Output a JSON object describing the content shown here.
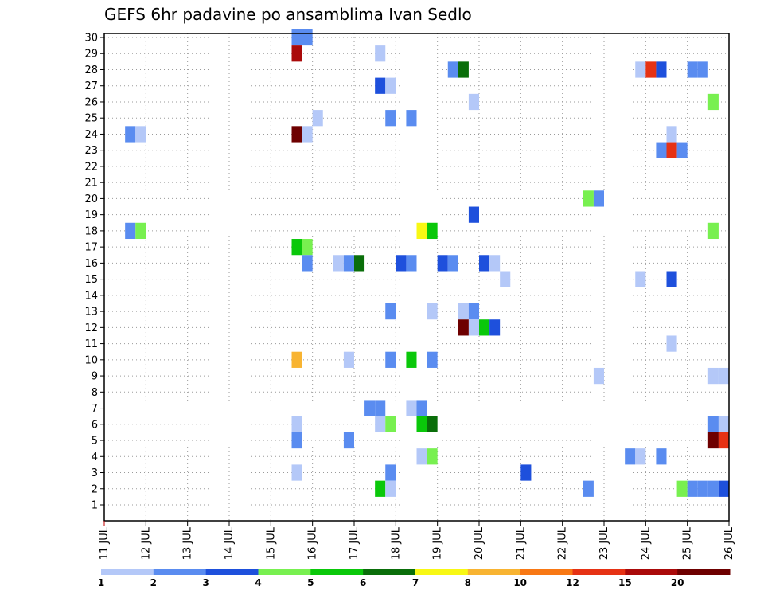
{
  "chart_data": {
    "type": "heatmap",
    "title": "GEFS 6hr padavine po ansamblima Ivan Sedlo",
    "xlabel": "",
    "ylabel": "",
    "x_tick_labels": [
      "11 JUL",
      "12 JUL",
      "13 JUL",
      "14 JUL",
      "15 JUL",
      "16 JUL",
      "17 JUL",
      "18 JUL",
      "19 JUL",
      "20 JUL",
      "21 JUL",
      "22 JUL",
      "23 JUL",
      "24 JUL",
      "25 JUL",
      "26 JUL"
    ],
    "x_range_days": [
      11,
      26
    ],
    "x_step_hours": 6,
    "y_tick_labels": [
      "1",
      "2",
      "3",
      "4",
      "5",
      "6",
      "7",
      "8",
      "9",
      "10",
      "11",
      "12",
      "13",
      "14",
      "15",
      "16",
      "17",
      "18",
      "19",
      "20",
      "21",
      "22",
      "23",
      "24",
      "25",
      "26",
      "27",
      "28",
      "29",
      "30"
    ],
    "y_range": [
      1,
      30
    ],
    "grid": "dotted",
    "colorbar": {
      "orientation": "horizontal",
      "placement": "bottom",
      "tick_labels": [
        "1",
        "2",
        "3",
        "4",
        "5",
        "6",
        "7",
        "8",
        "10",
        "12",
        "15",
        "20"
      ],
      "colors": [
        "#b4c8f8",
        "#5a8cf0",
        "#1e50dc",
        "#78f050",
        "#0ac80a",
        "#0a6e0a",
        "#f8f814",
        "#f8b432",
        "#f87814",
        "#e63214",
        "#aa0a0a",
        "#6e0000"
      ]
    },
    "cells": [
      {
        "t": "15 JUL 12",
        "m": 30,
        "c": 2
      },
      {
        "t": "15 JUL 18",
        "m": 30,
        "c": 2
      },
      {
        "t": "15 JUL 12",
        "m": 29,
        "c": 11
      },
      {
        "t": "17 JUL 12",
        "m": 29,
        "c": 1
      },
      {
        "t": "19 JUL 06",
        "m": 28,
        "c": 2
      },
      {
        "t": "19 JUL 12",
        "m": 28,
        "c": 6
      },
      {
        "t": "23 JUL 18",
        "m": 28,
        "c": 1
      },
      {
        "t": "24 JUL 00",
        "m": 28,
        "c": 10
      },
      {
        "t": "24 JUL 06",
        "m": 28,
        "c": 3
      },
      {
        "t": "25 JUL 00",
        "m": 28,
        "c": 2
      },
      {
        "t": "25 JUL 06",
        "m": 28,
        "c": 2
      },
      {
        "t": "17 JUL 12",
        "m": 27,
        "c": 3
      },
      {
        "t": "17 JUL 18",
        "m": 27,
        "c": 1
      },
      {
        "t": "19 JUL 18",
        "m": 26,
        "c": 1
      },
      {
        "t": "25 JUL 12",
        "m": 26,
        "c": 4
      },
      {
        "t": "16 JUL 00",
        "m": 25,
        "c": 1
      },
      {
        "t": "17 JUL 18",
        "m": 25,
        "c": 2
      },
      {
        "t": "18 JUL 06",
        "m": 25,
        "c": 2
      },
      {
        "t": "11 JUL 12",
        "m": 24,
        "c": 2
      },
      {
        "t": "11 JUL 18",
        "m": 24,
        "c": 1
      },
      {
        "t": "15 JUL 12",
        "m": 24,
        "c": 12
      },
      {
        "t": "15 JUL 18",
        "m": 24,
        "c": 1
      },
      {
        "t": "24 JUL 12",
        "m": 24,
        "c": 1
      },
      {
        "t": "24 JUL 06",
        "m": 23,
        "c": 2
      },
      {
        "t": "24 JUL 12",
        "m": 23,
        "c": 10
      },
      {
        "t": "24 JUL 18",
        "m": 23,
        "c": 2
      },
      {
        "t": "22 JUL 12",
        "m": 20,
        "c": 4
      },
      {
        "t": "22 JUL 18",
        "m": 20,
        "c": 2
      },
      {
        "t": "19 JUL 18",
        "m": 19,
        "c": 3
      },
      {
        "t": "11 JUL 12",
        "m": 18,
        "c": 2
      },
      {
        "t": "11 JUL 18",
        "m": 18,
        "c": 4
      },
      {
        "t": "18 JUL 12",
        "m": 18,
        "c": 7
      },
      {
        "t": "18 JUL 18",
        "m": 18,
        "c": 5
      },
      {
        "t": "25 JUL 12",
        "m": 18,
        "c": 4
      },
      {
        "t": "15 JUL 12",
        "m": 17,
        "c": 5
      },
      {
        "t": "15 JUL 18",
        "m": 17,
        "c": 4
      },
      {
        "t": "15 JUL 18",
        "m": 16,
        "c": 2
      },
      {
        "t": "16 JUL 12",
        "m": 16,
        "c": 1
      },
      {
        "t": "16 JUL 18",
        "m": 16,
        "c": 2
      },
      {
        "t": "17 JUL 00",
        "m": 16,
        "c": 6
      },
      {
        "t": "18 JUL 00",
        "m": 16,
        "c": 3
      },
      {
        "t": "18 JUL 06",
        "m": 16,
        "c": 2
      },
      {
        "t": "19 JUL 00",
        "m": 16,
        "c": 3
      },
      {
        "t": "19 JUL 06",
        "m": 16,
        "c": 2
      },
      {
        "t": "20 JUL 00",
        "m": 16,
        "c": 3
      },
      {
        "t": "20 JUL 06",
        "m": 16,
        "c": 1
      },
      {
        "t": "20 JUL 12",
        "m": 15,
        "c": 1
      },
      {
        "t": "23 JUL 18",
        "m": 15,
        "c": 1
      },
      {
        "t": "24 JUL 12",
        "m": 15,
        "c": 3
      },
      {
        "t": "17 JUL 18",
        "m": 13,
        "c": 2
      },
      {
        "t": "18 JUL 18",
        "m": 13,
        "c": 1
      },
      {
        "t": "19 JUL 12",
        "m": 13,
        "c": 1
      },
      {
        "t": "19 JUL 18",
        "m": 13,
        "c": 2
      },
      {
        "t": "19 JUL 12",
        "m": 12,
        "c": 12
      },
      {
        "t": "19 JUL 18",
        "m": 12,
        "c": 1
      },
      {
        "t": "20 JUL 00",
        "m": 12,
        "c": 5
      },
      {
        "t": "20 JUL 06",
        "m": 12,
        "c": 3
      },
      {
        "t": "24 JUL 12",
        "m": 11,
        "c": 1
      },
      {
        "t": "15 JUL 12",
        "m": 10,
        "c": 8
      },
      {
        "t": "16 JUL 18",
        "m": 10,
        "c": 1
      },
      {
        "t": "17 JUL 18",
        "m": 10,
        "c": 2
      },
      {
        "t": "18 JUL 06",
        "m": 10,
        "c": 5
      },
      {
        "t": "18 JUL 18",
        "m": 10,
        "c": 2
      },
      {
        "t": "22 JUL 18",
        "m": 9,
        "c": 1
      },
      {
        "t": "25 JUL 12",
        "m": 9,
        "c": 1
      },
      {
        "t": "25 JUL 18",
        "m": 9,
        "c": 1
      },
      {
        "t": "17 JUL 06",
        "m": 7,
        "c": 2
      },
      {
        "t": "17 JUL 12",
        "m": 7,
        "c": 2
      },
      {
        "t": "18 JUL 06",
        "m": 7,
        "c": 1
      },
      {
        "t": "18 JUL 12",
        "m": 7,
        "c": 2
      },
      {
        "t": "15 JUL 12",
        "m": 6,
        "c": 1
      },
      {
        "t": "17 JUL 12",
        "m": 6,
        "c": 1
      },
      {
        "t": "17 JUL 18",
        "m": 6,
        "c": 4
      },
      {
        "t": "18 JUL 12",
        "m": 6,
        "c": 5
      },
      {
        "t": "18 JUL 18",
        "m": 6,
        "c": 6
      },
      {
        "t": "25 JUL 12",
        "m": 6,
        "c": 2
      },
      {
        "t": "25 JUL 18",
        "m": 6,
        "c": 1
      },
      {
        "t": "15 JUL 12",
        "m": 5,
        "c": 2
      },
      {
        "t": "16 JUL 18",
        "m": 5,
        "c": 2
      },
      {
        "t": "25 JUL 12",
        "m": 5,
        "c": 12
      },
      {
        "t": "25 JUL 18",
        "m": 5,
        "c": 10
      },
      {
        "t": "18 JUL 12",
        "m": 4,
        "c": 1
      },
      {
        "t": "18 JUL 18",
        "m": 4,
        "c": 4
      },
      {
        "t": "23 JUL 12",
        "m": 4,
        "c": 2
      },
      {
        "t": "23 JUL 18",
        "m": 4,
        "c": 1
      },
      {
        "t": "24 JUL 06",
        "m": 4,
        "c": 2
      },
      {
        "t": "15 JUL 12",
        "m": 3,
        "c": 1
      },
      {
        "t": "17 JUL 18",
        "m": 3,
        "c": 2
      },
      {
        "t": "21 JUL 00",
        "m": 3,
        "c": 3
      },
      {
        "t": "17 JUL 12",
        "m": 2,
        "c": 5
      },
      {
        "t": "17 JUL 18",
        "m": 2,
        "c": 1
      },
      {
        "t": "22 JUL 12",
        "m": 2,
        "c": 2
      },
      {
        "t": "24 JUL 18",
        "m": 2,
        "c": 4
      },
      {
        "t": "25 JUL 00",
        "m": 2,
        "c": 2
      },
      {
        "t": "25 JUL 06",
        "m": 2,
        "c": 2
      },
      {
        "t": "25 JUL 12",
        "m": 2,
        "c": 2
      },
      {
        "t": "25 JUL 18",
        "m": 2,
        "c": 3
      }
    ]
  }
}
